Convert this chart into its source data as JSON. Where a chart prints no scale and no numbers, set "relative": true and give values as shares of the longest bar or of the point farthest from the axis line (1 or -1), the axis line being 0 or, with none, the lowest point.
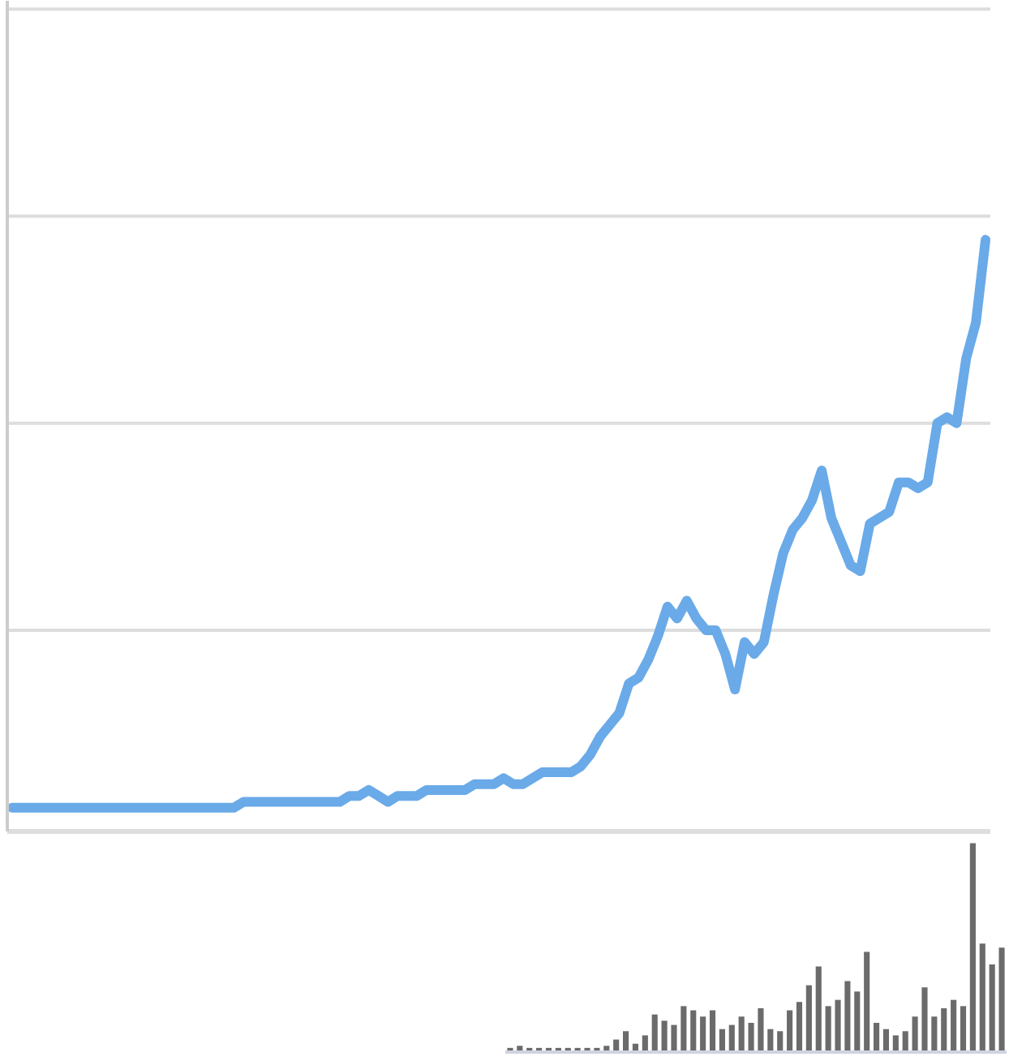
{
  "chart_data": [
    {
      "type": "line",
      "relative": true,
      "line_style": "solid",
      "ref_lines": [
        {
          "axis": "y",
          "value": 0.34
        },
        {
          "axis": "y",
          "value": 0.69
        },
        {
          "axis": "y",
          "value": 1.04
        },
        {
          "axis": "y",
          "value": 1.39
        }
      ],
      "categories": [
        null,
        null,
        null,
        null,
        null,
        null,
        null,
        null,
        null,
        null,
        null,
        null,
        null,
        null,
        null,
        null,
        null,
        null,
        null,
        null,
        null,
        null,
        null,
        null,
        null,
        null,
        null,
        null,
        null,
        null,
        null,
        null,
        null,
        null,
        null,
        null,
        null,
        null,
        null,
        null,
        null,
        null,
        null,
        null,
        null,
        null,
        null,
        null,
        null,
        null,
        null,
        null,
        null,
        null,
        null,
        null,
        null,
        null,
        null,
        null,
        null,
        null,
        null,
        null,
        null,
        null,
        null,
        null,
        null,
        null,
        null,
        null,
        null,
        null,
        null,
        null,
        null,
        null,
        null,
        null,
        null,
        null,
        null,
        null,
        null,
        null,
        null,
        null,
        null,
        null,
        null,
        null,
        null,
        null,
        null,
        null,
        null,
        null,
        null,
        null,
        null,
        null
      ],
      "series": [
        {
          "color": "#6aaae8",
          "values": [
            0.04,
            0.04,
            0.04,
            0.04,
            0.04,
            0.04,
            0.04,
            0.04,
            0.04,
            0.04,
            0.04,
            0.04,
            0.04,
            0.04,
            0.04,
            0.04,
            0.04,
            0.04,
            0.04,
            0.04,
            0.04,
            0.04,
            0.04,
            0.04,
            0.05,
            0.05,
            0.05,
            0.05,
            0.05,
            0.05,
            0.05,
            0.05,
            0.05,
            0.05,
            0.05,
            0.06,
            0.06,
            0.07,
            0.06,
            0.05,
            0.06,
            0.06,
            0.06,
            0.07,
            0.07,
            0.07,
            0.07,
            0.07,
            0.08,
            0.08,
            0.08,
            0.09,
            0.08,
            0.08,
            0.09,
            0.1,
            0.1,
            0.1,
            0.1,
            0.11,
            0.13,
            0.16,
            0.18,
            0.2,
            0.25,
            0.26,
            0.29,
            0.33,
            0.38,
            0.36,
            0.39,
            0.36,
            0.34,
            0.34,
            0.3,
            0.24,
            0.32,
            0.3,
            0.32,
            0.4,
            0.47,
            0.51,
            0.53,
            0.56,
            0.61,
            0.53,
            0.49,
            0.45,
            0.44,
            0.52,
            0.53,
            0.54,
            0.59,
            0.59,
            0.58,
            0.59,
            0.69,
            0.7,
            0.69,
            0.8,
            0.86,
            1
          ]
        }
      ]
    },
    {
      "type": "bar",
      "relative": true,
      "categories": [
        null,
        null,
        null,
        null,
        null,
        null,
        null,
        null,
        null,
        null,
        null,
        null,
        null,
        null,
        null,
        null,
        null,
        null,
        null,
        null,
        null,
        null,
        null,
        null,
        null,
        null,
        null,
        null,
        null,
        null,
        null,
        null,
        null,
        null,
        null,
        null,
        null,
        null,
        null,
        null,
        null,
        null,
        null,
        null,
        null,
        null,
        null,
        null,
        null,
        null,
        null,
        null
      ],
      "series": [
        {
          "color": "#6b6b6b",
          "values": [
            0.02,
            0.03,
            0.02,
            0.02,
            0.02,
            0.02,
            0.02,
            0.02,
            0.02,
            0.02,
            0.03,
            0.06,
            0.1,
            0.04,
            0.08,
            0.18,
            0.15,
            0.13,
            0.22,
            0.2,
            0.17,
            0.2,
            0.11,
            0.13,
            0.17,
            0.14,
            0.21,
            0.11,
            0.1,
            0.2,
            0.24,
            0.32,
            0.41,
            0.22,
            0.25,
            0.34,
            0.29,
            0.48,
            0.14,
            0.11,
            0.08,
            0.1,
            0.17,
            0.31,
            0.17,
            0.21,
            0.25,
            0.22,
            1,
            0.52,
            0.42,
            0.5
          ]
        }
      ]
    }
  ]
}
